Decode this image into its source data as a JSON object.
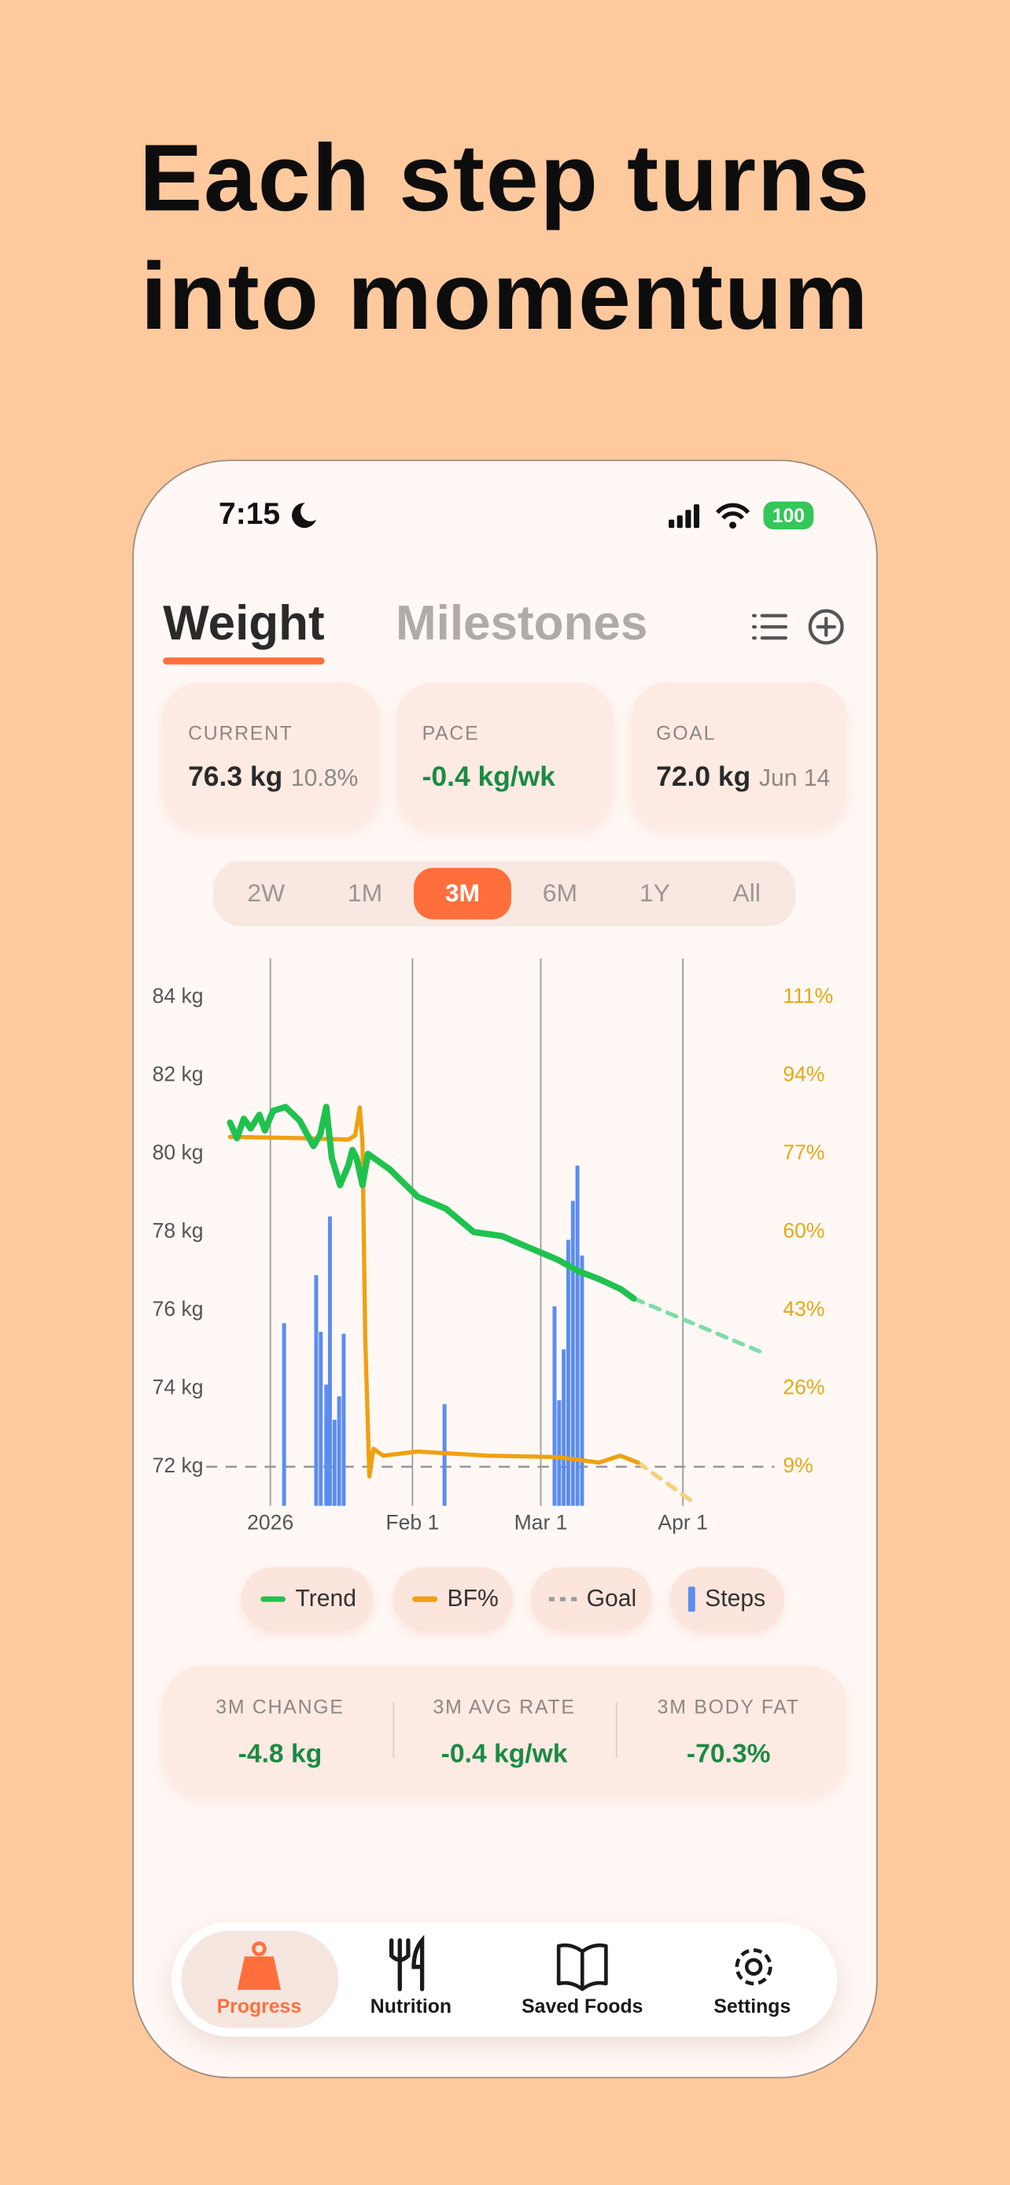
{
  "headline": [
    "Each step turns",
    "into momentum"
  ],
  "status_bar": {
    "time": "7:15",
    "battery": "100"
  },
  "tabs": {
    "items": [
      "Weight",
      "Milestones"
    ],
    "selected": 0
  },
  "cards": [
    {
      "label": "CURRENT",
      "value": "76.3 kg",
      "note": "10.8%"
    },
    {
      "label": "PACE",
      "value": "-0.4 kg/wk"
    },
    {
      "label": "GOAL",
      "value": "72.0 kg",
      "note": "Jun 14"
    }
  ],
  "ranges": {
    "items": [
      "2W",
      "1M",
      "3M",
      "6M",
      "1Y",
      "All"
    ],
    "selected": 2
  },
  "chart_data": {
    "type": "line",
    "xlim": [
      -14,
      110
    ],
    "xticks": [
      {
        "value": 0,
        "label": "2026"
      },
      {
        "value": 31,
        "label": "Feb 1"
      },
      {
        "value": 59,
        "label": "Mar 1"
      },
      {
        "value": 90,
        "label": "Apr 1"
      }
    ],
    "ylim": [
      71,
      85
    ],
    "yticks": [
      {
        "value": 72,
        "label": "72 kg"
      },
      {
        "value": 74,
        "label": "74 kg"
      },
      {
        "value": 76,
        "label": "76 kg"
      },
      {
        "value": 78,
        "label": "78 kg"
      },
      {
        "value": 80,
        "label": "80 kg"
      },
      {
        "value": 82,
        "label": "82 kg"
      },
      {
        "value": 84,
        "label": "84 kg"
      }
    ],
    "y2lim": [
      0.5,
      119.5
    ],
    "y2ticks": [
      {
        "value": 9,
        "label": "9%"
      },
      {
        "value": 26,
        "label": "26%"
      },
      {
        "value": 43,
        "label": "43%"
      },
      {
        "value": 60,
        "label": "60%"
      },
      {
        "value": 77,
        "label": "77%"
      },
      {
        "value": 94,
        "label": "94%"
      },
      {
        "value": 111,
        "label": "111%"
      }
    ],
    "y2color": "#e6a817",
    "grid": true,
    "series": [
      {
        "name": "Trend",
        "type": "line",
        "color": "#1fc24f",
        "x": [
          -8.8,
          -7.3,
          -5.8,
          -4.3,
          -2.4,
          -1.2,
          0.6,
          3.3,
          6.4,
          9.4,
          10.9,
          12.2,
          13.4,
          15.2,
          17.0,
          17.9,
          18.8,
          20.1,
          21.3,
          26.1,
          32.2,
          38.3,
          44.4,
          50.5,
          56.5,
          62.6,
          67.2,
          71.7,
          76.3,
          79.3
        ],
        "values": [
          80.8,
          80.4,
          80.9,
          80.65,
          81.0,
          80.6,
          81.1,
          81.2,
          80.85,
          80.2,
          80.5,
          81.2,
          79.9,
          79.2,
          79.7,
          80.1,
          79.9,
          79.2,
          80.0,
          79.6,
          78.9,
          78.6,
          78.0,
          77.9,
          77.6,
          77.3,
          77.0,
          76.8,
          76.55,
          76.3
        ],
        "projection_x": [
          79.3,
          106.7
        ],
        "projection_values": [
          76.3,
          74.95
        ],
        "projection_color": "#7fdcaa"
      },
      {
        "name": "BF%",
        "type": "line",
        "axis": "y2",
        "color": "#f0a010",
        "x": [
          -8.8,
          7.9,
          17.0,
          18.5,
          19.5,
          20.1,
          20.7,
          21.6,
          22.5,
          24.6,
          32.2,
          47.4,
          62.6,
          71.7,
          76.3,
          80.2
        ],
        "values": [
          80.7,
          80.4,
          80.1,
          81.0,
          87.1,
          79.5,
          37.1,
          6.9,
          12.9,
          11.4,
          12.3,
          11.4,
          11.1,
          9.9,
          11.4,
          9.9
        ],
        "projection_x": [
          80.2,
          93.0
        ],
        "projection_values": [
          9.9,
          0.8
        ],
        "projection_color": "#f5d27a"
      },
      {
        "name": "Steps",
        "type": "bar",
        "color": "#5b8def",
        "x": [
          3.0,
          10.0,
          11.0,
          12.2,
          13.0,
          14.0,
          15.0,
          16.0,
          38.0,
          62.0,
          63.0,
          64.0,
          65.0,
          66.0,
          67.0,
          68.0
        ],
        "values": [
          75.67,
          76.9,
          75.45,
          74.1,
          78.4,
          73.2,
          73.8,
          75.4,
          73.6,
          76.1,
          73.7,
          75.0,
          77.8,
          78.8,
          79.7,
          77.4
        ]
      }
    ],
    "goal": {
      "name": "Goal",
      "value": 72,
      "color": "#9a9a9a"
    }
  },
  "stats": [
    {
      "label": "3M CHANGE",
      "value": "-4.8 kg"
    },
    {
      "label": "3M AVG RATE",
      "value": "-0.4 kg/wk"
    },
    {
      "label": "3M BODY FAT",
      "value": "-70.3%"
    }
  ],
  "nav": {
    "items": [
      "Progress",
      "Nutrition",
      "Saved Foods",
      "Settings"
    ],
    "selected": 0
  }
}
